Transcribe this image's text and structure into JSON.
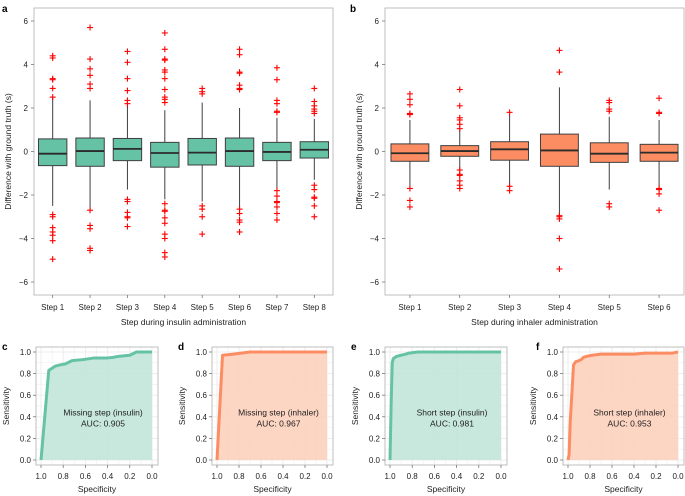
{
  "colors": {
    "insulin_fill": "#66c2a5",
    "insulin_roc_fill": "#c2e6da",
    "inhaler_fill": "#fc8d62",
    "inhaler_roc_fill": "#fdd0bd",
    "box_edge": "#3f3f3f",
    "outlier": "#ff0000",
    "frame": "#b0b0b0",
    "grid": "#ececec"
  },
  "chart_data": [
    {
      "id": "a",
      "panel_letter": "a",
      "type": "box",
      "ylabel": "Difference with ground truth (s)",
      "xlabel": "Step during insulin administration",
      "ylim": [
        -6.5,
        6.6
      ],
      "yticks": [
        -6,
        -4,
        -2,
        0,
        2,
        4,
        6
      ],
      "ytick_labels": [
        "−6",
        "−4",
        "−2",
        "0",
        "2",
        "4",
        "6"
      ],
      "color_key": "insulin_fill",
      "categories": [
        "Step 1",
        "Step 2",
        "Step 3",
        "Step 4",
        "Step 5",
        "Step 6",
        "Step 7",
        "Step 8"
      ],
      "boxes": [
        {
          "q1": -0.65,
          "median": -0.1,
          "q3": 0.58,
          "whisker_low": -2.5,
          "whisker_high": 2.5,
          "outliers": [
            4.4,
            4.3,
            3.35,
            3.3,
            2.9,
            2.5,
            -2.9,
            -3.0,
            -3.5,
            -3.7,
            -3.85,
            -4.1,
            -4.95
          ]
        },
        {
          "q1": -0.68,
          "median": 0.02,
          "q3": 0.62,
          "whisker_low": -2.7,
          "whisker_high": 2.35,
          "outliers": [
            5.7,
            4.25,
            3.8,
            3.5,
            3.1,
            2.9,
            -2.7,
            -3.4,
            -3.55,
            -4.45,
            -4.55
          ]
        },
        {
          "q1": -0.42,
          "median": 0.12,
          "q3": 0.6,
          "whisker_low": -1.75,
          "whisker_high": 2.1,
          "outliers": [
            4.6,
            4.1,
            3.35,
            2.8,
            2.35,
            2.2,
            -2.2,
            -2.3,
            -2.8,
            -3.0,
            -3.05,
            -3.45
          ]
        },
        {
          "q1": -0.72,
          "median": -0.07,
          "q3": 0.42,
          "whisker_low": -2.2,
          "whisker_high": 1.9,
          "outliers": [
            5.45,
            4.7,
            4.25,
            4.2,
            3.75,
            3.65,
            3.35,
            2.85,
            2.5,
            2.4,
            2.25,
            -2.4,
            -2.7,
            -2.75,
            -3.05,
            -3.3,
            -3.8,
            -4.0,
            -4.65,
            -4.85
          ]
        },
        {
          "q1": -0.62,
          "median": -0.05,
          "q3": 0.6,
          "whisker_low": -2.3,
          "whisker_high": 2.25,
          "outliers": [
            2.9,
            2.75,
            2.65,
            -2.5,
            -2.65,
            -3.0,
            -3.8
          ]
        },
        {
          "q1": -0.68,
          "median": 0.02,
          "q3": 0.62,
          "whisker_low": -2.6,
          "whisker_high": 2.0,
          "outliers": [
            4.7,
            4.45,
            3.65,
            3.6,
            3.05,
            2.9,
            2.85,
            -2.65,
            -2.85,
            -3.15,
            -3.25,
            -3.7
          ]
        },
        {
          "q1": -0.42,
          "median": -0.02,
          "q3": 0.42,
          "whisker_low": -1.75,
          "whisker_high": 1.55,
          "outliers": [
            3.85,
            3.3,
            2.35,
            2.2,
            1.85,
            1.8,
            -1.8,
            -2.05,
            -2.3,
            -2.35,
            -2.55,
            -2.85,
            -3.15
          ]
        },
        {
          "q1": -0.3,
          "median": 0.08,
          "q3": 0.45,
          "whisker_low": -1.3,
          "whisker_high": 1.5,
          "outliers": [
            2.9,
            2.3,
            2.1,
            1.95,
            1.85,
            1.75,
            -1.55,
            -1.75,
            -2.1,
            -2.15,
            -2.5,
            -3.0
          ]
        }
      ]
    },
    {
      "id": "b",
      "panel_letter": "b",
      "type": "box",
      "ylabel": "Difference with ground truth (s)",
      "xlabel": "Step during inhaler administration",
      "ylim": [
        -6.5,
        6.6
      ],
      "yticks": [
        -6,
        -4,
        -2,
        0,
        2,
        4,
        6
      ],
      "ytick_labels": [
        "−6",
        "−4",
        "−2",
        "0",
        "2",
        "4",
        "6"
      ],
      "color_key": "inhaler_fill",
      "categories": [
        "Step 1",
        "Step 2",
        "Step 3",
        "Step 4",
        "Step 5",
        "Step 6"
      ],
      "boxes": [
        {
          "q1": -0.45,
          "median": -0.08,
          "q3": 0.35,
          "whisker_low": -1.7,
          "whisker_high": 1.45,
          "outliers": [
            2.65,
            2.4,
            2.15,
            1.75,
            1.72,
            1.7,
            -1.7,
            -2.25,
            -2.55
          ]
        },
        {
          "q1": -0.22,
          "median": 0.02,
          "q3": 0.27,
          "whisker_low": -0.85,
          "whisker_high": 1.0,
          "outliers": [
            2.85,
            2.1,
            1.55,
            1.45,
            1.25,
            1.05,
            -0.85,
            -1.05,
            -1.1,
            -1.35,
            -1.55,
            -1.7
          ]
        },
        {
          "q1": -0.4,
          "median": 0.1,
          "q3": 0.45,
          "whisker_low": -1.6,
          "whisker_high": 1.8,
          "outliers": [
            1.8,
            -1.6,
            -1.8
          ]
        },
        {
          "q1": -0.68,
          "median": 0.05,
          "q3": 0.8,
          "whisker_low": -2.9,
          "whisker_high": 2.95,
          "outliers": [
            4.65,
            3.65,
            -2.95,
            -3.0,
            -3.1,
            -4.0,
            -5.4
          ]
        },
        {
          "q1": -0.5,
          "median": -0.1,
          "q3": 0.4,
          "whisker_low": -1.75,
          "whisker_high": 1.6,
          "outliers": [
            2.35,
            2.25,
            1.95,
            1.85,
            -2.4,
            -2.55
          ]
        },
        {
          "q1": -0.45,
          "median": -0.05,
          "q3": 0.33,
          "whisker_low": -1.65,
          "whisker_high": 1.45,
          "outliers": [
            2.45,
            1.8,
            1.75,
            -1.7,
            -1.75,
            -1.95,
            -2.7
          ]
        }
      ]
    },
    {
      "id": "c",
      "panel_letter": "c",
      "type": "line",
      "subtype": "roc",
      "xlabel": "Specificity",
      "ylabel": "Sensitivity",
      "xlim": [
        1.0,
        0.0
      ],
      "ylim": [
        0.0,
        1.0
      ],
      "xticks": [
        "1.0",
        "0.8",
        "0.6",
        "0.4",
        "0.2",
        "0.0"
      ],
      "yticks": [
        "0.0",
        "0.2",
        "0.4",
        "0.6",
        "0.8",
        "1.0"
      ],
      "grid": true,
      "color_key": "insulin_fill",
      "fill_key": "insulin_roc_fill",
      "annotation": [
        "Missing step (insulin)",
        "AUC: 0.905"
      ],
      "auc": 0.905,
      "points": [
        [
          1.0,
          0.0
        ],
        [
          0.93,
          0.83
        ],
        [
          0.9,
          0.85
        ],
        [
          0.87,
          0.87
        ],
        [
          0.83,
          0.88
        ],
        [
          0.78,
          0.89
        ],
        [
          0.72,
          0.92
        ],
        [
          0.62,
          0.93
        ],
        [
          0.52,
          0.945
        ],
        [
          0.4,
          0.945
        ],
        [
          0.35,
          0.95
        ],
        [
          0.3,
          0.96
        ],
        [
          0.2,
          0.97
        ],
        [
          0.14,
          1.0
        ],
        [
          0.0,
          1.0
        ]
      ]
    },
    {
      "id": "d",
      "panel_letter": "d",
      "type": "line",
      "subtype": "roc",
      "xlabel": "Specificity",
      "ylabel": "Sensitivity",
      "xlim": [
        1.0,
        0.0
      ],
      "ylim": [
        0.0,
        1.0
      ],
      "xticks": [
        "1.0",
        "0.8",
        "0.6",
        "0.4",
        "0.2",
        "0.0"
      ],
      "yticks": [
        "0.0",
        "0.2",
        "0.4",
        "0.6",
        "0.8",
        "1.0"
      ],
      "grid": true,
      "color_key": "inhaler_fill",
      "fill_key": "inhaler_roc_fill",
      "annotation": [
        "Missing step (inhaler)",
        "AUC: 0.967"
      ],
      "auc": 0.967,
      "points": [
        [
          1.0,
          0.0
        ],
        [
          0.95,
          0.97
        ],
        [
          0.85,
          0.98
        ],
        [
          0.7,
          1.0
        ],
        [
          0.0,
          1.0
        ]
      ]
    },
    {
      "id": "e",
      "panel_letter": "e",
      "type": "line",
      "subtype": "roc",
      "xlabel": "Specificity",
      "ylabel": "Sensitivity",
      "xlim": [
        1.0,
        0.0
      ],
      "ylim": [
        0.0,
        1.0
      ],
      "xticks": [
        "1.0",
        "0.8",
        "0.6",
        "0.4",
        "0.2",
        "0.0"
      ],
      "yticks": [
        "0.0",
        "0.2",
        "0.4",
        "0.6",
        "0.8",
        "1.0"
      ],
      "grid": true,
      "color_key": "insulin_fill",
      "fill_key": "insulin_roc_fill",
      "annotation": [
        "Short step (insulin)",
        "AUC: 0.981"
      ],
      "auc": 0.981,
      "points": [
        [
          1.0,
          0.0
        ],
        [
          0.99,
          0.5
        ],
        [
          0.98,
          0.9
        ],
        [
          0.97,
          0.94
        ],
        [
          0.94,
          0.96
        ],
        [
          0.9,
          0.97
        ],
        [
          0.86,
          0.98
        ],
        [
          0.83,
          0.99
        ],
        [
          0.75,
          1.0
        ],
        [
          0.0,
          1.0
        ]
      ]
    },
    {
      "id": "f",
      "panel_letter": "f",
      "type": "line",
      "subtype": "roc",
      "xlabel": "Specificity",
      "ylabel": "Sensitivity",
      "xlim": [
        1.0,
        0.0
      ],
      "ylim": [
        0.0,
        1.0
      ],
      "xticks": [
        "1.0",
        "0.8",
        "0.6",
        "0.4",
        "0.2",
        "0.0"
      ],
      "yticks": [
        "0.0",
        "0.2",
        "0.4",
        "0.6",
        "0.8",
        "1.0"
      ],
      "grid": true,
      "color_key": "inhaler_fill",
      "fill_key": "inhaler_roc_fill",
      "annotation": [
        "Short step (inhaler)",
        "AUC: 0.953"
      ],
      "auc": 0.953,
      "points": [
        [
          1.0,
          0.0
        ],
        [
          0.99,
          0.05
        ],
        [
          0.98,
          0.35
        ],
        [
          0.96,
          0.7
        ],
        [
          0.95,
          0.88
        ],
        [
          0.93,
          0.91
        ],
        [
          0.9,
          0.92
        ],
        [
          0.88,
          0.93
        ],
        [
          0.86,
          0.95
        ],
        [
          0.83,
          0.96
        ],
        [
          0.78,
          0.97
        ],
        [
          0.7,
          0.98
        ],
        [
          0.4,
          0.98
        ],
        [
          0.3,
          0.99
        ],
        [
          0.05,
          0.99
        ],
        [
          0.0,
          1.0
        ]
      ]
    }
  ]
}
